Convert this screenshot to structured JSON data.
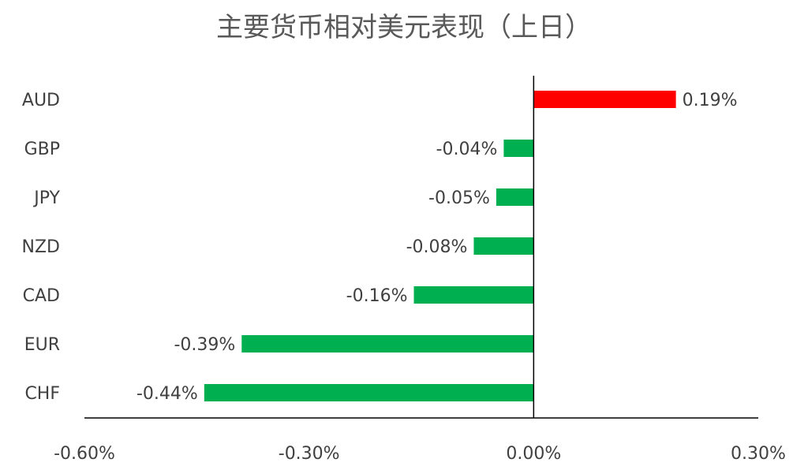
{
  "chart_data": {
    "type": "bar",
    "orientation": "horizontal",
    "title": "主要货币相对美元表现（上日）",
    "categories": [
      "AUD",
      "GBP",
      "JPY",
      "NZD",
      "CAD",
      "EUR",
      "CHF"
    ],
    "values": [
      0.19,
      -0.04,
      -0.05,
      -0.08,
      -0.16,
      -0.39,
      -0.44
    ],
    "value_labels": [
      "0.19%",
      "-0.04%",
      "-0.05%",
      "-0.08%",
      "-0.16%",
      "-0.39%",
      "-0.44%"
    ],
    "xlim": [
      -0.6,
      0.3
    ],
    "x_ticks": [
      -0.6,
      -0.3,
      0.0,
      0.3
    ],
    "x_tick_labels": [
      "-0.60%",
      "-0.30%",
      "0.00%",
      "0.30%"
    ],
    "unit": "%",
    "grid": false,
    "legend": "none",
    "colors": {
      "positive": "#ff0000",
      "negative": "#00b050",
      "axis": "#000000"
    }
  }
}
